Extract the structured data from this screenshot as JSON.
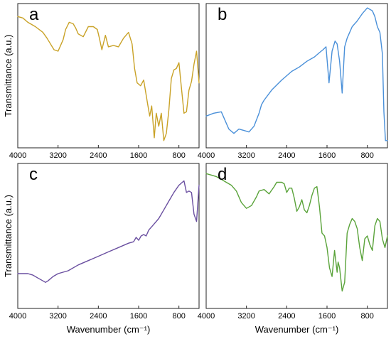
{
  "chart_data": [
    {
      "type": "line",
      "panel_label": "a",
      "xlabel": "",
      "ylabel": "Transmittance (a.u.)",
      "xlim": [
        4000,
        400
      ],
      "ylim": [
        0,
        1
      ],
      "xticks": [
        "4000",
        "3200",
        "2400",
        "1600",
        "800"
      ],
      "series": [
        {
          "color": "#c9a227",
          "x": [
            4000,
            3900,
            3800,
            3650,
            3500,
            3420,
            3350,
            3280,
            3200,
            3100,
            3050,
            2980,
            2900,
            2850,
            2800,
            2700,
            2600,
            2500,
            2420,
            2380,
            2330,
            2260,
            2200,
            2100,
            2000,
            1900,
            1800,
            1730,
            1680,
            1630,
            1560,
            1500,
            1420,
            1380,
            1340,
            1290,
            1250,
            1200,
            1150,
            1100,
            1050,
            1000,
            950,
            900,
            850,
            800,
            760,
            700,
            650,
            600,
            550,
            500,
            450,
            400
          ],
          "y": [
            0.91,
            0.9,
            0.87,
            0.84,
            0.8,
            0.76,
            0.72,
            0.68,
            0.67,
            0.75,
            0.82,
            0.87,
            0.86,
            0.83,
            0.79,
            0.77,
            0.84,
            0.84,
            0.82,
            0.76,
            0.68,
            0.78,
            0.7,
            0.71,
            0.7,
            0.76,
            0.8,
            0.72,
            0.55,
            0.45,
            0.43,
            0.47,
            0.3,
            0.22,
            0.29,
            0.07,
            0.24,
            0.15,
            0.24,
            0.05,
            0.1,
            0.26,
            0.48,
            0.54,
            0.55,
            0.59,
            0.45,
            0.24,
            0.25,
            0.4,
            0.46,
            0.58,
            0.67,
            0.45
          ]
        }
      ]
    },
    {
      "type": "line",
      "panel_label": "b",
      "xlabel": "",
      "ylabel": "",
      "xlim": [
        4000,
        400
      ],
      "ylim": [
        0,
        1
      ],
      "xticks": [
        "4000",
        "3200",
        "2400",
        "1600",
        "800"
      ],
      "series": [
        {
          "color": "#4a90d9",
          "x": [
            4000,
            3850,
            3700,
            3550,
            3450,
            3350,
            3250,
            3150,
            3050,
            2950,
            2900,
            2850,
            2700,
            2500,
            2300,
            2150,
            2000,
            1850,
            1750,
            1680,
            1620,
            1560,
            1500,
            1440,
            1400,
            1350,
            1300,
            1250,
            1200,
            1100,
            1000,
            900,
            800,
            700,
            650,
            600,
            550,
            500,
            470,
            440,
            400
          ],
          "y": [
            0.22,
            0.24,
            0.25,
            0.13,
            0.1,
            0.13,
            0.12,
            0.11,
            0.15,
            0.24,
            0.3,
            0.33,
            0.4,
            0.47,
            0.53,
            0.56,
            0.6,
            0.63,
            0.66,
            0.68,
            0.7,
            0.45,
            0.67,
            0.74,
            0.72,
            0.6,
            0.38,
            0.7,
            0.76,
            0.84,
            0.88,
            0.93,
            0.97,
            0.95,
            0.91,
            0.84,
            0.8,
            0.65,
            0.25,
            0.05,
            0.05
          ]
        }
      ]
    },
    {
      "type": "line",
      "panel_label": "c",
      "xlabel": "Wavenumber (cm⁻¹)",
      "ylabel": "Transmittance (a.u.)",
      "xlim": [
        4000,
        400
      ],
      "ylim": [
        0,
        1
      ],
      "xticks": [
        "4000",
        "3200",
        "2400",
        "1600",
        "800"
      ],
      "series": [
        {
          "color": "#6a4fa0",
          "x": [
            4000,
            3900,
            3800,
            3700,
            3600,
            3500,
            3450,
            3400,
            3300,
            3200,
            3000,
            2800,
            2600,
            2400,
            2200,
            2000,
            1800,
            1700,
            1650,
            1600,
            1550,
            1500,
            1450,
            1400,
            1300,
            1200,
            1100,
            1000,
            900,
            800,
            700,
            650,
            600,
            550,
            500,
            450,
            420,
            400
          ],
          "y": [
            0.24,
            0.24,
            0.24,
            0.23,
            0.21,
            0.19,
            0.18,
            0.19,
            0.22,
            0.24,
            0.26,
            0.3,
            0.33,
            0.36,
            0.39,
            0.42,
            0.45,
            0.46,
            0.49,
            0.47,
            0.5,
            0.51,
            0.5,
            0.54,
            0.58,
            0.62,
            0.68,
            0.74,
            0.8,
            0.85,
            0.88,
            0.8,
            0.81,
            0.8,
            0.65,
            0.6,
            0.75,
            0.85
          ]
        }
      ]
    },
    {
      "type": "line",
      "panel_label": "d",
      "xlabel": "Wavenumber (cm⁻¹)",
      "ylabel": "",
      "xlim": [
        4000,
        400
      ],
      "ylim": [
        0,
        1
      ],
      "xticks": [
        "4000",
        "3200",
        "2400",
        "1600",
        "800"
      ],
      "series": [
        {
          "color": "#5aa33a",
          "x": [
            4000,
            3900,
            3800,
            3700,
            3600,
            3500,
            3400,
            3300,
            3200,
            3100,
            3000,
            2950,
            2850,
            2750,
            2650,
            2600,
            2500,
            2450,
            2400,
            2350,
            2300,
            2250,
            2200,
            2150,
            2100,
            2050,
            2000,
            1950,
            1900,
            1850,
            1800,
            1750,
            1700,
            1650,
            1600,
            1550,
            1500,
            1450,
            1400,
            1380,
            1350,
            1300,
            1250,
            1200,
            1150,
            1100,
            1050,
            1000,
            950,
            900,
            850,
            800,
            750,
            700,
            650,
            600,
            550,
            500,
            450,
            400
          ],
          "y": [
            0.93,
            0.92,
            0.91,
            0.89,
            0.87,
            0.85,
            0.81,
            0.73,
            0.69,
            0.71,
            0.77,
            0.81,
            0.82,
            0.79,
            0.84,
            0.87,
            0.87,
            0.86,
            0.8,
            0.83,
            0.83,
            0.76,
            0.67,
            0.7,
            0.75,
            0.68,
            0.66,
            0.71,
            0.78,
            0.83,
            0.84,
            0.7,
            0.52,
            0.5,
            0.42,
            0.28,
            0.22,
            0.4,
            0.25,
            0.32,
            0.28,
            0.12,
            0.18,
            0.52,
            0.58,
            0.62,
            0.6,
            0.55,
            0.42,
            0.33,
            0.48,
            0.5,
            0.44,
            0.4,
            0.57,
            0.62,
            0.6,
            0.48,
            0.42,
            0.5
          ]
        }
      ]
    }
  ]
}
